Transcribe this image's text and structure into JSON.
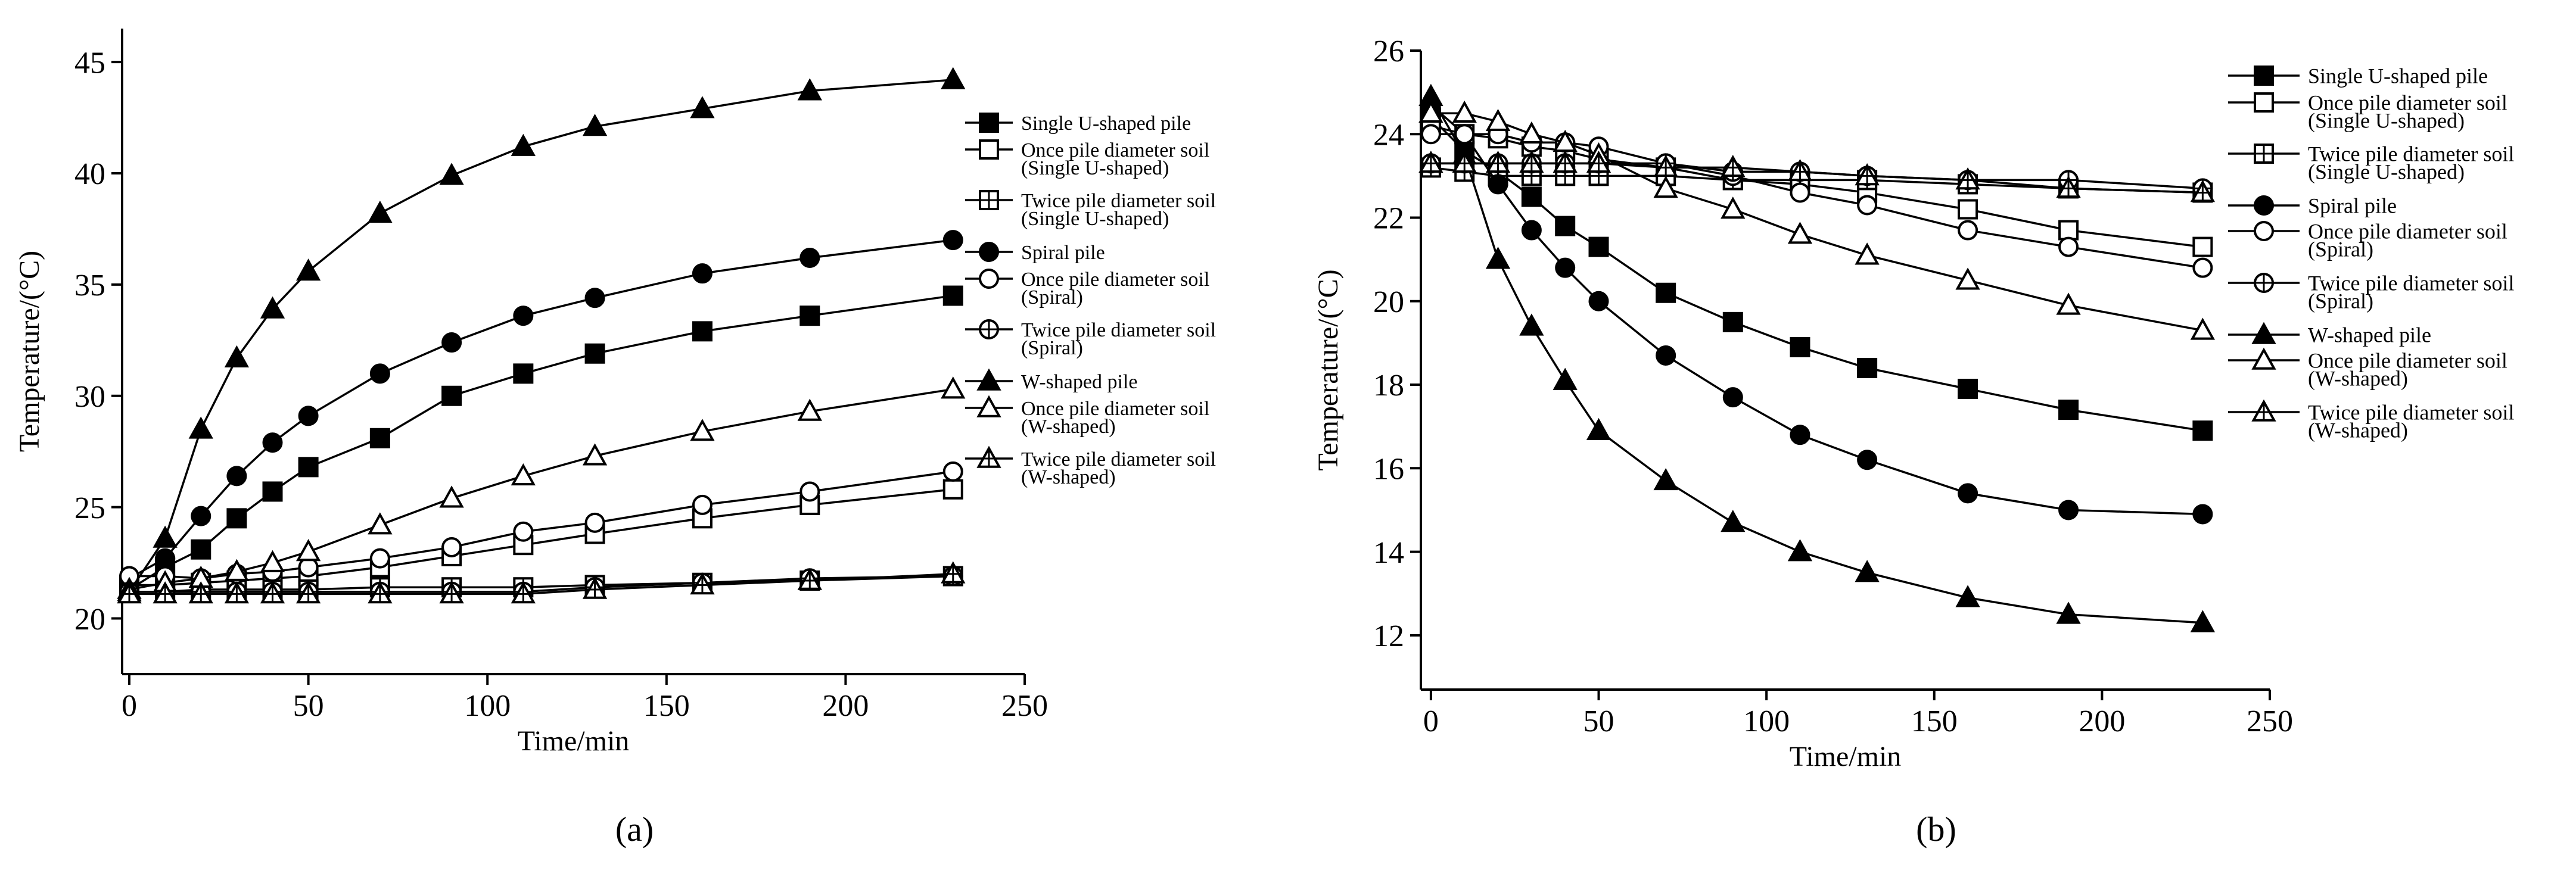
{
  "figure": {
    "panel_labels": [
      "(a)",
      "(b)"
    ]
  },
  "marker_styles": {
    "Single U-shaped pile": "square-filled",
    "Once pile diameter soil (Single U-shaped)": "square-open",
    "Twice pile diameter soil (Single U-shaped)": "square-cross",
    "Spiral pile": "circle-filled",
    "Once pile diameter soil (Spiral)": "circle-open",
    "Twice pile diameter soil (Spiral)": "circle-cross",
    "W-shaped pile": "triangle-filled",
    "Once pile diameter soil (W-shaped)": "triangle-open",
    "Twice pile diameter soil (W-shaped)": "triangle-cross"
  },
  "chart_data": [
    {
      "panel": "(a)",
      "type": "line",
      "title": "",
      "xlabel": "Time/min",
      "ylabel": "Temperature/(°C)",
      "xlim": [
        -2,
        250
      ],
      "ylim": [
        17.5,
        46.5
      ],
      "xticks": [
        0,
        50,
        100,
        150,
        200,
        250
      ],
      "yticks": [
        20,
        25,
        30,
        35,
        40,
        45
      ],
      "legend_position": "right",
      "legend": [
        [
          "Single U-shaped pile"
        ],
        [
          "Once pile diameter soil",
          "(Single U-shaped)"
        ],
        [
          "Twice pile diameter soil",
          "(Single U-shaped)"
        ],
        [
          "Spiral pile"
        ],
        [
          "Once pile diameter soil",
          "(Spiral)"
        ],
        [
          "Twice pile diameter soil",
          "(Spiral)"
        ],
        [
          "W-shaped pile"
        ],
        [
          "Once pile diameter soil",
          "(W-shaped)"
        ],
        [
          "Twice pile diameter soil",
          "(W-shaped)"
        ]
      ],
      "x": [
        0,
        10,
        20,
        30,
        40,
        50,
        70,
        90,
        110,
        130,
        160,
        190,
        230
      ],
      "series": [
        {
          "name": "Single U-shaped pile",
          "values": [
            21.3,
            22.3,
            23.1,
            24.5,
            25.7,
            26.8,
            28.1,
            30.0,
            31.0,
            31.9,
            32.9,
            33.6,
            34.5
          ]
        },
        {
          "name": "Once pile diameter soil (Single U-shaped)",
          "values": [
            21.5,
            21.5,
            21.6,
            21.7,
            21.8,
            21.9,
            22.3,
            22.8,
            23.3,
            23.8,
            24.5,
            25.1,
            25.8
          ]
        },
        {
          "name": "Twice pile diameter soil (Single U-shaped)",
          "values": [
            21.2,
            21.2,
            21.3,
            21.3,
            21.3,
            21.3,
            21.4,
            21.4,
            21.4,
            21.5,
            21.6,
            21.7,
            21.9
          ]
        },
        {
          "name": "Spiral pile",
          "values": [
            21.8,
            22.7,
            24.6,
            26.4,
            27.9,
            29.1,
            31.0,
            32.4,
            33.6,
            34.4,
            35.5,
            36.2,
            37.0
          ]
        },
        {
          "name": "Once pile diameter soil (Spiral)",
          "values": [
            21.9,
            21.9,
            21.8,
            22.0,
            22.1,
            22.3,
            22.7,
            23.2,
            23.9,
            24.3,
            25.1,
            25.7,
            26.6
          ]
        },
        {
          "name": "Twice pile diameter soil (Spiral)",
          "values": [
            21.2,
            21.2,
            21.2,
            21.2,
            21.2,
            21.2,
            21.2,
            21.2,
            21.2,
            21.4,
            21.6,
            21.8,
            21.9
          ]
        },
        {
          "name": "W-shaped pile",
          "values": [
            21.2,
            23.6,
            28.5,
            31.7,
            33.9,
            35.6,
            38.2,
            39.9,
            41.2,
            42.1,
            42.9,
            43.7,
            44.2
          ]
        },
        {
          "name": "Once pile diameter soil (W-shaped)",
          "values": [
            21.3,
            21.6,
            21.8,
            22.1,
            22.5,
            23.0,
            24.2,
            25.4,
            26.4,
            27.3,
            28.4,
            29.3,
            30.3
          ]
        },
        {
          "name": "Twice pile diameter soil (W-shaped)",
          "values": [
            21.1,
            21.1,
            21.1,
            21.1,
            21.1,
            21.1,
            21.1,
            21.1,
            21.1,
            21.3,
            21.5,
            21.7,
            22.0
          ]
        }
      ]
    },
    {
      "panel": "(b)",
      "type": "line",
      "title": "",
      "xlabel": "Time/min",
      "ylabel": "Temperature/(°C)",
      "xlim": [
        -3,
        250
      ],
      "ylim": [
        10.7,
        26
      ],
      "xticks": [
        0,
        50,
        100,
        150,
        200,
        250
      ],
      "yticks": [
        12,
        14,
        16,
        18,
        20,
        22,
        24,
        26
      ],
      "legend_position": "top-right",
      "legend": [
        [
          "Single U-shaped pile"
        ],
        [
          "Once pile diameter soil",
          "(Single U-shaped)"
        ],
        [
          "Twice pile diameter soil",
          "(Single U-shaped)"
        ],
        [
          "Spiral pile"
        ],
        [
          "Once pile diameter soil",
          "(Spiral)"
        ],
        [
          "Twice pile diameter soil",
          "(Spiral)"
        ],
        [
          "W-shaped pile"
        ],
        [
          "Once pile diameter soil",
          "(W-shaped)"
        ],
        [
          "Twice pile diameter soil",
          "(W-shaped)"
        ]
      ],
      "x": [
        0,
        10,
        20,
        30,
        40,
        50,
        70,
        90,
        110,
        130,
        160,
        190,
        230
      ],
      "series": [
        {
          "name": "Single U-shaped pile",
          "values": [
            24.4,
            23.6,
            23.1,
            22.5,
            21.8,
            21.3,
            20.2,
            19.5,
            18.9,
            18.4,
            17.9,
            17.4,
            16.9
          ]
        },
        {
          "name": "Once pile diameter soil (Single U-shaped)",
          "values": [
            24.2,
            24.0,
            23.9,
            23.7,
            23.6,
            23.4,
            23.2,
            22.9,
            22.8,
            22.6,
            22.2,
            21.7,
            21.3
          ]
        },
        {
          "name": "Twice pile diameter soil (Single U-shaped)",
          "values": [
            23.2,
            23.1,
            23.0,
            23.0,
            23.0,
            23.0,
            23.0,
            22.9,
            22.9,
            22.9,
            22.8,
            22.7,
            22.6
          ]
        },
        {
          "name": "Spiral pile",
          "values": [
            24.7,
            24.0,
            22.8,
            21.7,
            20.8,
            20.0,
            18.7,
            17.7,
            16.8,
            16.2,
            15.4,
            15.0,
            14.9
          ]
        },
        {
          "name": "Once pile diameter soil (Spiral)",
          "values": [
            24.0,
            24.0,
            24.0,
            23.8,
            23.8,
            23.7,
            23.3,
            23.0,
            22.6,
            22.3,
            21.7,
            21.3,
            20.8
          ]
        },
        {
          "name": "Twice pile diameter soil (Spiral)",
          "values": [
            23.3,
            23.3,
            23.3,
            23.3,
            23.3,
            23.3,
            23.3,
            23.1,
            23.1,
            23.0,
            22.9,
            22.9,
            22.7
          ]
        },
        {
          "name": "W-shaped pile",
          "values": [
            24.9,
            23.5,
            21.0,
            19.4,
            18.1,
            16.9,
            15.7,
            14.7,
            14.0,
            13.5,
            12.9,
            12.5,
            12.3
          ]
        },
        {
          "name": "Once pile diameter soil (W-shaped)",
          "values": [
            24.5,
            24.5,
            24.3,
            24.0,
            23.8,
            23.5,
            22.7,
            22.2,
            21.6,
            21.1,
            20.5,
            19.9,
            19.3
          ]
        },
        {
          "name": "Twice pile diameter soil (W-shaped)",
          "values": [
            23.3,
            23.3,
            23.3,
            23.3,
            23.3,
            23.3,
            23.2,
            23.2,
            23.1,
            23.0,
            22.9,
            22.7,
            22.6
          ]
        }
      ]
    }
  ]
}
